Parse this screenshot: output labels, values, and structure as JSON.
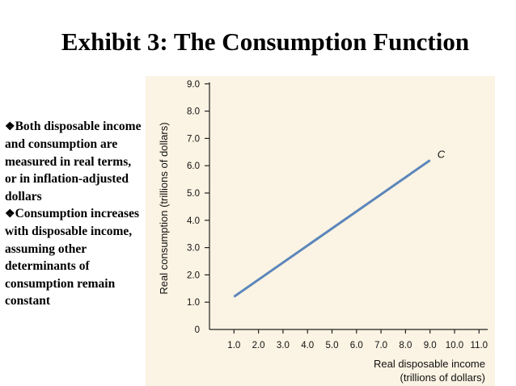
{
  "slide": {
    "title": "Exhibit 3: The Consumption Function",
    "bullets": [
      {
        "marker": "❖",
        "text": "Both disposable income and consumption are measured in real terms, or in inflation-adjusted dollars"
      },
      {
        "marker": "❖",
        "text": "Consumption increases with disposable income, assuming other determinants of consumption remain constant"
      }
    ]
  },
  "colors": {
    "panel_background": "#fbf3e3",
    "series_line": "#5b86bb",
    "axis": "#222222"
  },
  "chart_data": {
    "type": "line",
    "title": "",
    "xlabel_line1": "Real disposable income",
    "xlabel_line2": "(trillions of dollars)",
    "ylabel": "Real consumption (trillions of dollars)",
    "xlim": [
      0,
      11.0
    ],
    "ylim": [
      0,
      9.0
    ],
    "x_ticks": [
      "1.0",
      "2.0",
      "3.0",
      "4.0",
      "5.0",
      "6.0",
      "7.0",
      "8.0",
      "9.0",
      "10.0",
      "11.0"
    ],
    "x_tick_values": [
      1,
      2,
      3,
      4,
      5,
      6,
      7,
      8,
      9,
      10,
      11
    ],
    "y_ticks": [
      "0",
      "1.0",
      "2.0",
      "3.0",
      "4.0",
      "5.0",
      "6.0",
      "7.0",
      "8.0",
      "9.0"
    ],
    "y_tick_values": [
      0,
      1,
      2,
      3,
      4,
      5,
      6,
      7,
      8,
      9
    ],
    "grid": false,
    "series": [
      {
        "name": "C",
        "x": [
          1.0,
          9.0
        ],
        "y": [
          1.2,
          6.2
        ]
      }
    ]
  }
}
